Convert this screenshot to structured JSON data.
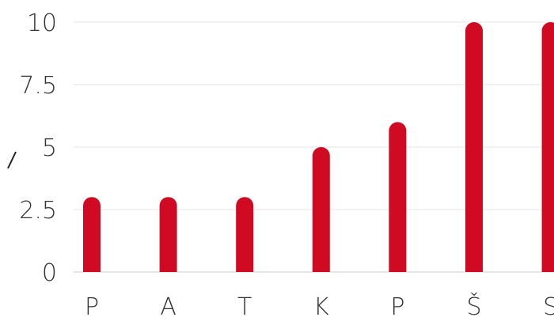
{
  "chart_data": {
    "type": "bar",
    "title": "",
    "xlabel": "",
    "ylabel": "",
    "categories": [
      "P",
      "A",
      "T",
      "K",
      "P",
      "Š",
      "S"
    ],
    "values": [
      3,
      3,
      3,
      5,
      6,
      10,
      10
    ],
    "ylim": [
      0,
      10
    ],
    "yticks": [
      0,
      2.5,
      5,
      7.5,
      10
    ],
    "ytick_labels": [
      "0",
      "2.5",
      "5",
      "7.5",
      "10"
    ],
    "grid": true,
    "legend": "none",
    "bar_color": "#d00a22",
    "bar_style": "rounded-caps"
  }
}
